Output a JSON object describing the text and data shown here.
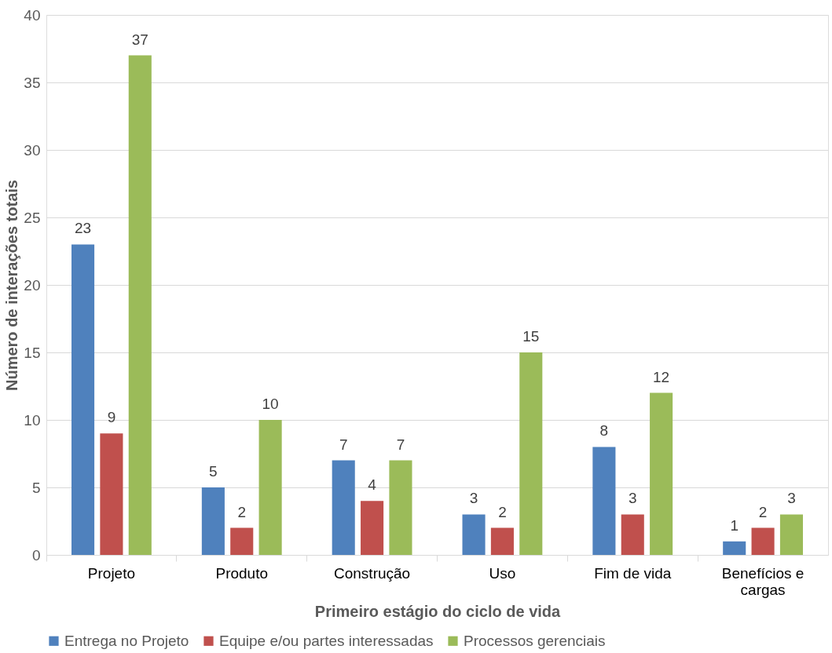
{
  "chart_data": {
    "type": "bar",
    "xlabel": "Primeiro estágio do ciclo de vida",
    "ylabel": "Número de interações totais",
    "categories": [
      "Projeto",
      "Produto",
      "Construção",
      "Uso",
      "Fim de vida",
      "Benefícios e cargas"
    ],
    "series": [
      {
        "name": "Entrega no Projeto",
        "color": "#4f81bd",
        "values": [
          23,
          5,
          7,
          3,
          8,
          1
        ]
      },
      {
        "name": "Equipe e/ou partes interessadas",
        "color": "#c0504d",
        "values": [
          9,
          2,
          4,
          2,
          3,
          2
        ]
      },
      {
        "name": "Processos gerenciais",
        "color": "#9bbb59",
        "values": [
          37,
          10,
          7,
          15,
          12,
          3
        ]
      }
    ],
    "ylim": [
      0,
      40
    ],
    "yticks": [
      0,
      5,
      10,
      15,
      20,
      25,
      30,
      35,
      40
    ],
    "grid": "y",
    "legend": "bottom",
    "data_labels": true
  }
}
